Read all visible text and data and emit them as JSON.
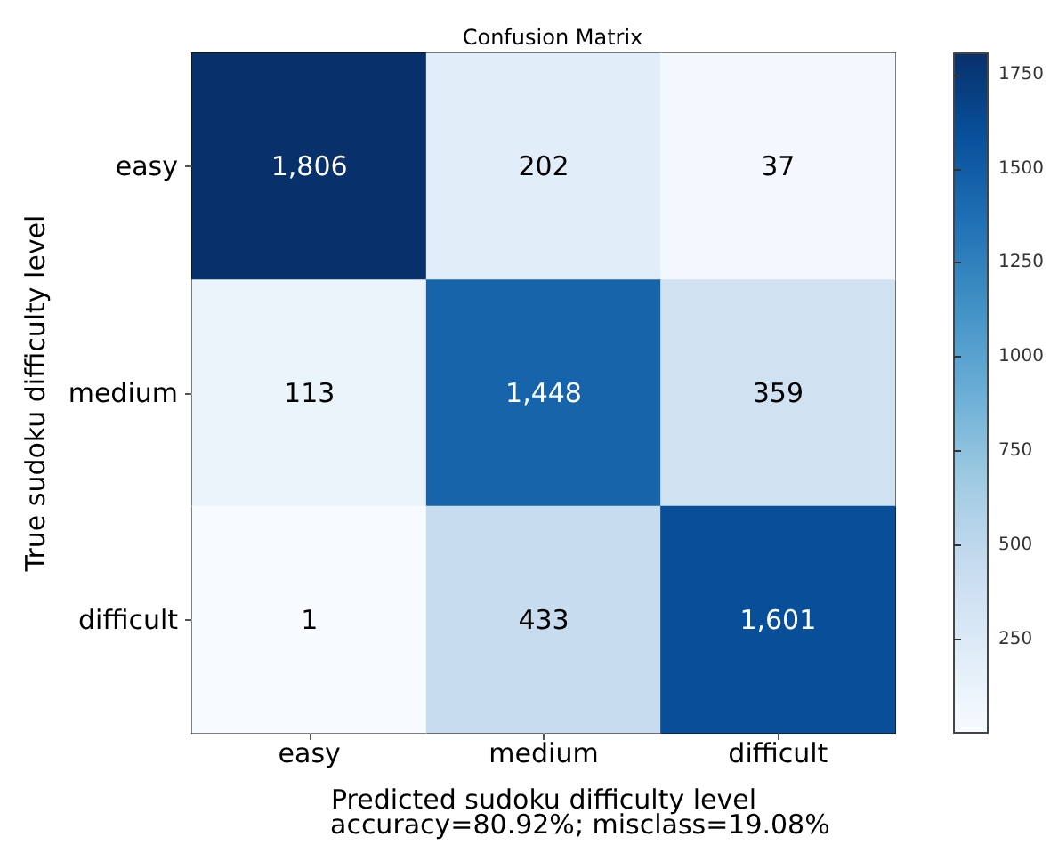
{
  "chart_data": {
    "type": "heatmap",
    "title": "Confusion Matrix",
    "xlabel": "Predicted sudoku difficulty level",
    "ylabel": "True sudoku difficulty level",
    "annotations": [
      "accuracy=80.92%; misclass=19.08%"
    ],
    "categories": [
      "easy",
      "medium",
      "difficult"
    ],
    "y_categories": [
      "easy",
      "medium",
      "difficult"
    ],
    "cells": [
      [
        1806,
        202,
        37
      ],
      [
        113,
        1448,
        359
      ],
      [
        1,
        433,
        1601
      ]
    ],
    "cell_labels": [
      [
        "1,806",
        "202",
        "37"
      ],
      [
        "113",
        "1,448",
        "359"
      ],
      [
        "1",
        "433",
        "1,601"
      ]
    ],
    "clim": [
      1,
      1806
    ],
    "cticks": [
      250,
      500,
      750,
      1000,
      1250,
      1500,
      1750
    ]
  }
}
